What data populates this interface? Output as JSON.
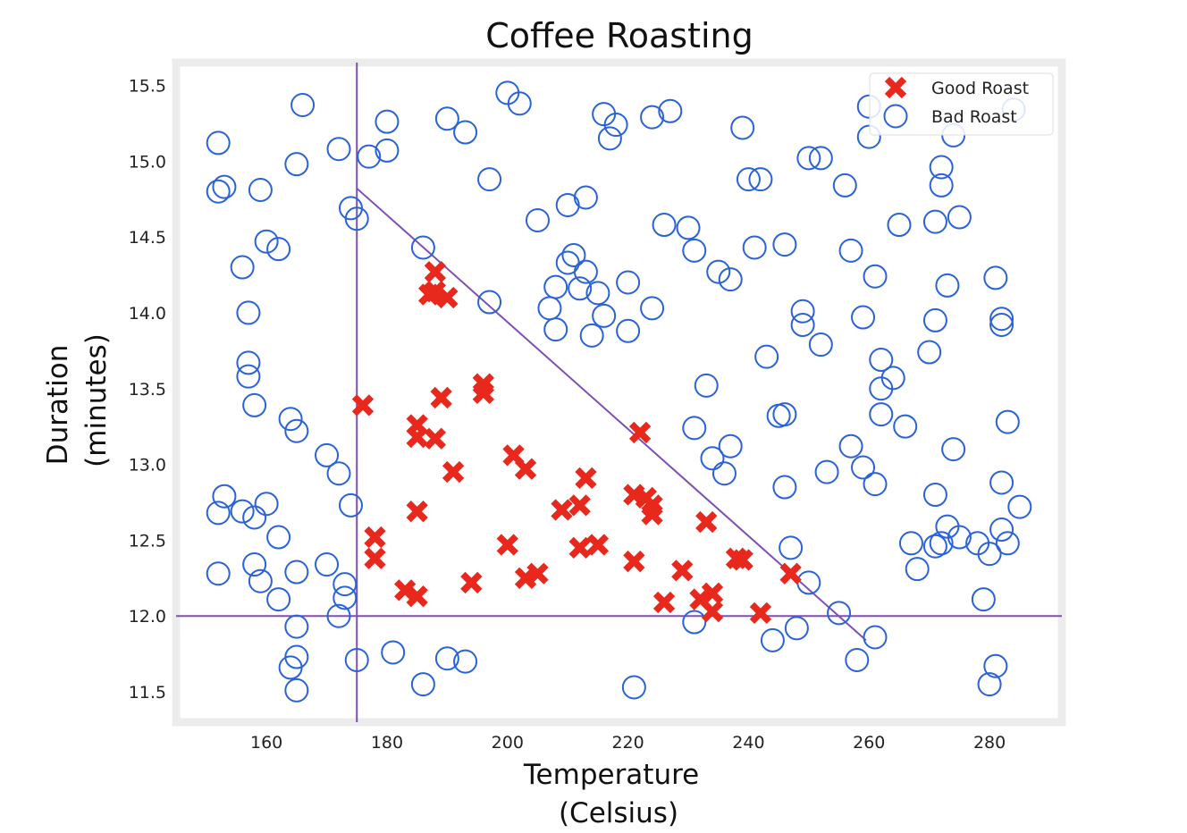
{
  "chart_data": {
    "type": "scatter",
    "title": "Coffee Roasting",
    "xlabel": [
      "Temperature",
      "(Celsius)"
    ],
    "ylabel": [
      "Duration",
      "(minutes)"
    ],
    "xlim": [
      145,
      292
    ],
    "ylim": [
      11.3,
      15.65
    ],
    "x_ticks": [
      "160",
      "180",
      "200",
      "220",
      "240",
      "260",
      "280"
    ],
    "y_ticks": [
      "11.5",
      "12.0",
      "12.5",
      "13.0",
      "13.5",
      "14.0",
      "14.5",
      "15.0",
      "15.5"
    ],
    "grid": false,
    "legend_position": "top-right",
    "colors": {
      "good": "#e8281c",
      "bad": "#2a62d8",
      "boundary": "#7e4fb4",
      "frame": "#ececec"
    },
    "series": [
      {
        "name": "Good Roast",
        "marker": "x",
        "points": [
          [
            176,
            13.39
          ],
          [
            178,
            12.52
          ],
          [
            178,
            12.38
          ],
          [
            183,
            12.17
          ],
          [
            185,
            12.13
          ],
          [
            185,
            12.69
          ],
          [
            185,
            13.26
          ],
          [
            185,
            13.18
          ],
          [
            188,
            13.17
          ],
          [
            187,
            14.12
          ],
          [
            188,
            14.27
          ],
          [
            188,
            14.14
          ],
          [
            190,
            14.1
          ],
          [
            189,
            13.44
          ],
          [
            191,
            12.95
          ],
          [
            194,
            12.22
          ],
          [
            196,
            13.53
          ],
          [
            196,
            13.47
          ],
          [
            200,
            12.47
          ],
          [
            201,
            13.06
          ],
          [
            203,
            12.97
          ],
          [
            203,
            12.25
          ],
          [
            205,
            12.28
          ],
          [
            209,
            12.7
          ],
          [
            212,
            12.73
          ],
          [
            213,
            12.91
          ],
          [
            212,
            12.45
          ],
          [
            215,
            12.47
          ],
          [
            221,
            12.8
          ],
          [
            221,
            12.36
          ],
          [
            222,
            13.21
          ],
          [
            223,
            12.78
          ],
          [
            224,
            12.73
          ],
          [
            224,
            12.67
          ],
          [
            226,
            12.09
          ],
          [
            229,
            12.3
          ],
          [
            232,
            12.11
          ],
          [
            233,
            12.62
          ],
          [
            234,
            12.15
          ],
          [
            234,
            12.03
          ],
          [
            238,
            12.38
          ],
          [
            239,
            12.37
          ],
          [
            242,
            12.02
          ],
          [
            247,
            12.28
          ]
        ]
      },
      {
        "name": "Bad Roast",
        "marker": "o",
        "points": [
          [
            152,
            14.8
          ],
          [
            153,
            14.83
          ],
          [
            152,
            15.12
          ],
          [
            152,
            12.68
          ],
          [
            153,
            12.79
          ],
          [
            152,
            12.28
          ],
          [
            156,
            12.69
          ],
          [
            156,
            14.3
          ],
          [
            157,
            14.0
          ],
          [
            157,
            13.67
          ],
          [
            157,
            13.58
          ],
          [
            158,
            13.39
          ],
          [
            158,
            12.65
          ],
          [
            158,
            12.34
          ],
          [
            159,
            12.23
          ],
          [
            160,
            12.74
          ],
          [
            159,
            14.81
          ],
          [
            160,
            14.47
          ],
          [
            162,
            14.42
          ],
          [
            162,
            12.52
          ],
          [
            162,
            12.11
          ],
          [
            164,
            13.3
          ],
          [
            164,
            11.66
          ],
          [
            165,
            11.73
          ],
          [
            165,
            11.93
          ],
          [
            165,
            11.51
          ],
          [
            165,
            12.29
          ],
          [
            165,
            13.22
          ],
          [
            165,
            14.98
          ],
          [
            166,
            15.37
          ],
          [
            170,
            13.06
          ],
          [
            170,
            12.34
          ],
          [
            172,
            12.0
          ],
          [
            172,
            12.94
          ],
          [
            173,
            12.21
          ],
          [
            173,
            12.12
          ],
          [
            172,
            15.08
          ],
          [
            174,
            12.73
          ],
          [
            174,
            14.69
          ],
          [
            175,
            14.62
          ],
          [
            175,
            11.71
          ],
          [
            177,
            15.03
          ],
          [
            180,
            15.07
          ],
          [
            180,
            15.26
          ],
          [
            181,
            11.76
          ],
          [
            186,
            14.43
          ],
          [
            186,
            11.55
          ],
          [
            190,
            15.28
          ],
          [
            190,
            11.72
          ],
          [
            193,
            15.19
          ],
          [
            193,
            11.7
          ],
          [
            197,
            14.07
          ],
          [
            197,
            14.88
          ],
          [
            200,
            15.45
          ],
          [
            202,
            15.38
          ],
          [
            205,
            14.61
          ],
          [
            207,
            14.03
          ],
          [
            208,
            13.89
          ],
          [
            208,
            14.17
          ],
          [
            210,
            14.33
          ],
          [
            210,
            14.71
          ],
          [
            211,
            14.38
          ],
          [
            212,
            14.16
          ],
          [
            213,
            14.76
          ],
          [
            213,
            14.27
          ],
          [
            214,
            13.85
          ],
          [
            215,
            14.13
          ],
          [
            216,
            13.98
          ],
          [
            216,
            15.31
          ],
          [
            217,
            15.15
          ],
          [
            218,
            15.24
          ],
          [
            220,
            14.2
          ],
          [
            220,
            13.88
          ],
          [
            221,
            11.53
          ],
          [
            224,
            14.03
          ],
          [
            224,
            15.29
          ],
          [
            226,
            14.58
          ],
          [
            227,
            15.33
          ],
          [
            230,
            14.56
          ],
          [
            231,
            14.41
          ],
          [
            231,
            13.24
          ],
          [
            231,
            11.96
          ],
          [
            233,
            13.52
          ],
          [
            234,
            13.04
          ],
          [
            235,
            14.27
          ],
          [
            236,
            12.94
          ],
          [
            237,
            13.12
          ],
          [
            237,
            14.22
          ],
          [
            239,
            15.22
          ],
          [
            240,
            14.88
          ],
          [
            241,
            14.43
          ],
          [
            242,
            14.88
          ],
          [
            243,
            13.71
          ],
          [
            244,
            11.84
          ],
          [
            245,
            13.32
          ],
          [
            246,
            12.85
          ],
          [
            246,
            13.33
          ],
          [
            246,
            14.45
          ],
          [
            247,
            12.45
          ],
          [
            248,
            11.92
          ],
          [
            249,
            13.92
          ],
          [
            249,
            14.01
          ],
          [
            250,
            15.02
          ],
          [
            250,
            12.22
          ],
          [
            252,
            15.02
          ],
          [
            252,
            13.79
          ],
          [
            253,
            12.95
          ],
          [
            255,
            12.02
          ],
          [
            256,
            14.84
          ],
          [
            257,
            14.41
          ],
          [
            257,
            13.12
          ],
          [
            258,
            11.71
          ],
          [
            259,
            13.97
          ],
          [
            259,
            12.98
          ],
          [
            260,
            15.36
          ],
          [
            260,
            15.16
          ],
          [
            261,
            14.24
          ],
          [
            261,
            12.87
          ],
          [
            261,
            11.86
          ],
          [
            262,
            13.69
          ],
          [
            262,
            13.33
          ],
          [
            262,
            13.5
          ],
          [
            264,
            13.57
          ],
          [
            265,
            14.58
          ],
          [
            266,
            13.25
          ],
          [
            267,
            12.48
          ],
          [
            268,
            12.31
          ],
          [
            270,
            13.74
          ],
          [
            271,
            12.46
          ],
          [
            271,
            12.8
          ],
          [
            271,
            14.6
          ],
          [
            271,
            13.95
          ],
          [
            272,
            12.48
          ],
          [
            272,
            14.84
          ],
          [
            272,
            14.96
          ],
          [
            273,
            12.59
          ],
          [
            273,
            14.18
          ],
          [
            274,
            15.17
          ],
          [
            274,
            13.1
          ],
          [
            275,
            12.52
          ],
          [
            275,
            14.63
          ],
          [
            278,
            12.48
          ],
          [
            279,
            12.11
          ],
          [
            280,
            12.41
          ],
          [
            280,
            11.55
          ],
          [
            281,
            11.67
          ],
          [
            281,
            14.23
          ],
          [
            282,
            13.92
          ],
          [
            282,
            13.96
          ],
          [
            282,
            12.57
          ],
          [
            282,
            12.88
          ],
          [
            283,
            13.28
          ],
          [
            283,
            12.48
          ],
          [
            284,
            15.34
          ],
          [
            285,
            12.72
          ]
        ]
      }
    ],
    "boundaries": [
      {
        "from": [
          175,
          11.3
        ],
        "to": [
          175,
          15.65
        ]
      },
      {
        "from": [
          145,
          12.0
        ],
        "to": [
          292,
          12.0
        ]
      },
      {
        "from": [
          175,
          14.82
        ],
        "to": [
          259.5,
          11.84
        ]
      }
    ]
  }
}
